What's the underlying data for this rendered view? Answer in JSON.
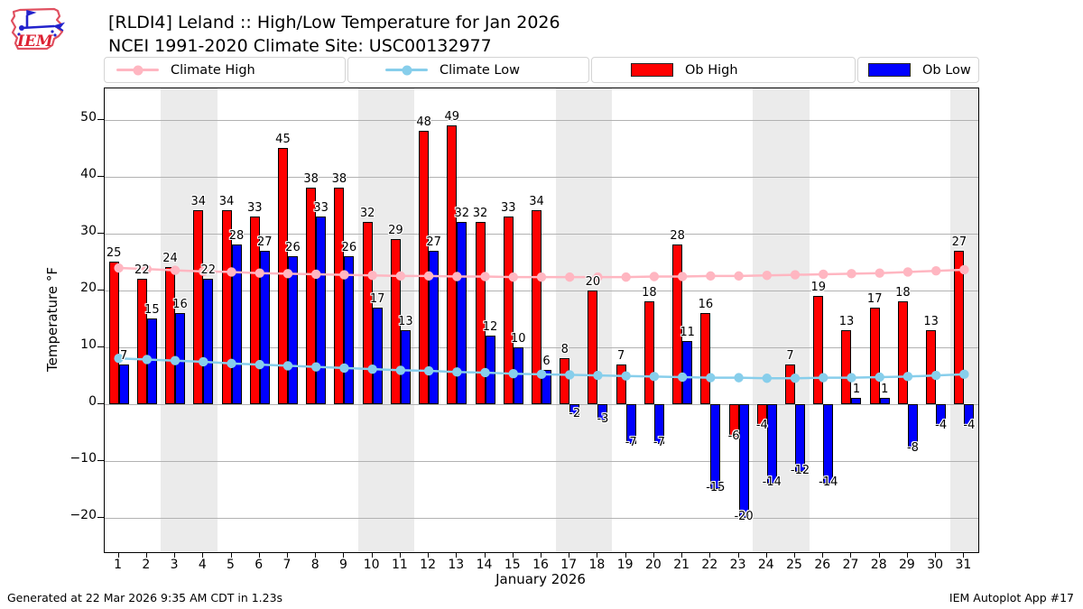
{
  "header": {
    "title_line1": "[RLDI4] Leland :: High/Low Temperature for Jan 2026",
    "title_line2": "NCEI 1991-2020 Climate Site: USC00132977",
    "logo_text": "IEM"
  },
  "legend": {
    "items": [
      {
        "label": "Climate High",
        "type": "line",
        "color": "#ffb6c1"
      },
      {
        "label": "Climate Low",
        "type": "line",
        "color": "#87ceeb"
      },
      {
        "label": "Ob High",
        "type": "patch",
        "color": "#ff0000"
      },
      {
        "label": "Ob Low",
        "type": "patch",
        "color": "#0000ff"
      }
    ]
  },
  "chart_data": {
    "type": "bar",
    "title": "[RLDI4] Leland :: High/Low Temperature for Jan 2026",
    "subtitle": "NCEI 1991-2020 Climate Site: USC00132977",
    "xlabel": "January 2026",
    "ylabel": "Temperature °F",
    "x": [
      1,
      2,
      3,
      4,
      5,
      6,
      7,
      8,
      9,
      10,
      11,
      12,
      13,
      14,
      15,
      16,
      17,
      18,
      19,
      20,
      21,
      22,
      23,
      24,
      25,
      26,
      27,
      28,
      29,
      30,
      31
    ],
    "ylim": [
      -26.1,
      55.5
    ],
    "yticks": [
      -20,
      -10,
      0,
      10,
      20,
      30,
      40,
      50
    ],
    "grid": true,
    "weekend_shaded_days": [
      3,
      4,
      10,
      11,
      17,
      18,
      24,
      25,
      31
    ],
    "legend_position": "top",
    "series": [
      {
        "name": "Ob High",
        "type": "bar",
        "color": "#ff0000",
        "values": [
          25,
          22,
          24,
          34,
          34,
          33,
          45,
          38,
          38,
          32,
          29,
          48,
          49,
          32,
          33,
          34,
          8,
          20,
          7,
          18,
          28,
          16,
          -6,
          -4,
          7,
          19,
          13,
          17,
          18,
          13,
          27
        ]
      },
      {
        "name": "Ob Low",
        "type": "bar",
        "color": "#0000ff",
        "values": [
          7,
          15,
          16,
          22,
          28,
          27,
          26,
          33,
          26,
          17,
          13,
          27,
          32,
          12,
          10,
          6,
          -2,
          -3,
          -7,
          -7,
          11,
          -15,
          -20,
          -14,
          -12,
          -14,
          1,
          1,
          -8,
          -4,
          -4
        ]
      },
      {
        "name": "Climate High",
        "type": "line",
        "color": "#ffb6c1",
        "values": [
          23.9,
          23.7,
          23.5,
          23.3,
          23.2,
          23.0,
          22.9,
          22.8,
          22.7,
          22.6,
          22.5,
          22.5,
          22.4,
          22.4,
          22.3,
          22.3,
          22.3,
          22.3,
          22.3,
          22.4,
          22.4,
          22.5,
          22.5,
          22.6,
          22.7,
          22.8,
          22.9,
          23.0,
          23.2,
          23.4,
          23.6
        ]
      },
      {
        "name": "Climate Low",
        "type": "line",
        "color": "#87ceeb",
        "values": [
          8.0,
          7.8,
          7.6,
          7.4,
          7.1,
          6.9,
          6.7,
          6.5,
          6.3,
          6.1,
          5.9,
          5.8,
          5.6,
          5.5,
          5.3,
          5.2,
          5.1,
          5.0,
          4.9,
          4.8,
          4.7,
          4.6,
          4.6,
          4.5,
          4.5,
          4.6,
          4.6,
          4.7,
          4.8,
          5.0,
          5.2
        ]
      }
    ]
  },
  "footer": {
    "left": "Generated at 22 Mar 2026 9:35 AM CDT in 1.23s",
    "right": "IEM Autoplot App #17"
  }
}
